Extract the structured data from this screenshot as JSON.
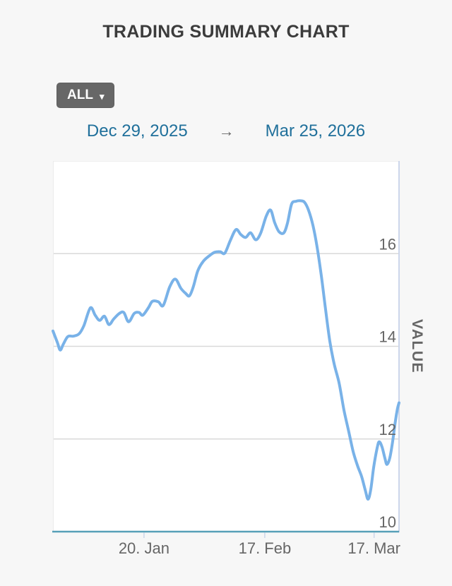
{
  "header": {
    "title": "TRADING SUMMARY CHART"
  },
  "controls": {
    "range_dropdown": {
      "label": "ALL",
      "caret": "▾"
    },
    "date_range": {
      "start": "Dec 29, 2025",
      "arrow": "→",
      "end": "Mar 25, 2026"
    }
  },
  "colors": {
    "page_bg": "#f7f7f7",
    "plot_bg": "#ffffff",
    "line": "#79b2e8",
    "x_axis_line": "#57a0b8",
    "gridline": "#d9d9d9",
    "plot_border_right": "#ccd6eb",
    "plot_border_left": "#ebebeb",
    "plot_border_top": "#efefef",
    "tick": "#ccd6eb",
    "axis_label": "#666666",
    "axis_title": "#666666"
  },
  "chart_data": {
    "type": "line",
    "title": "TRADING SUMMARY CHART",
    "xlabel": "",
    "ylabel": "VALUE",
    "x_range_labels": [
      "Dec 29, 2025",
      "Mar 25, 2026"
    ],
    "x_unit": "days from Dec 29, 2025",
    "x_span_days": 86,
    "ylim": [
      10,
      18
    ],
    "grid": true,
    "legend": "none",
    "y_ticks": [
      10,
      12,
      14,
      16
    ],
    "x_ticks": [
      {
        "label": "20. Jan",
        "day": 22,
        "f": 0.263
      },
      {
        "label": "17. Feb",
        "day": 50,
        "f": 0.612
      },
      {
        "label": "17. Mar",
        "day": 78,
        "f": 0.928
      }
    ],
    "points": [
      [
        0,
        14.33
      ],
      [
        1.1,
        14.08
      ],
      [
        1.8,
        13.92
      ],
      [
        2.6,
        14.05
      ],
      [
        3.7,
        14.21
      ],
      [
        5.1,
        14.22
      ],
      [
        6.5,
        14.27
      ],
      [
        7.7,
        14.45
      ],
      [
        9.3,
        14.83
      ],
      [
        10.5,
        14.67
      ],
      [
        11.6,
        14.56
      ],
      [
        12.8,
        14.65
      ],
      [
        13.9,
        14.47
      ],
      [
        15.1,
        14.59
      ],
      [
        16.5,
        14.71
      ],
      [
        17.6,
        14.73
      ],
      [
        18.8,
        14.53
      ],
      [
        20.2,
        14.71
      ],
      [
        21.4,
        14.73
      ],
      [
        22.3,
        14.67
      ],
      [
        23.7,
        14.83
      ],
      [
        24.7,
        14.97
      ],
      [
        26.2,
        14.96
      ],
      [
        27.4,
        14.88
      ],
      [
        29,
        15.28
      ],
      [
        30.4,
        15.45
      ],
      [
        31.8,
        15.25
      ],
      [
        33,
        15.14
      ],
      [
        33.9,
        15.09
      ],
      [
        34.9,
        15.29
      ],
      [
        36,
        15.63
      ],
      [
        37.4,
        15.84
      ],
      [
        38.8,
        15.95
      ],
      [
        40.2,
        16.03
      ],
      [
        41.6,
        16.04
      ],
      [
        42.7,
        16.01
      ],
      [
        44.1,
        16.29
      ],
      [
        45.5,
        16.52
      ],
      [
        46.7,
        16.41
      ],
      [
        47.9,
        16.35
      ],
      [
        49.1,
        16.45
      ],
      [
        50.4,
        16.3
      ],
      [
        51.6,
        16.44
      ],
      [
        53,
        16.81
      ],
      [
        54.1,
        16.94
      ],
      [
        55.1,
        16.67
      ],
      [
        56.2,
        16.47
      ],
      [
        57.4,
        16.45
      ],
      [
        58.3,
        16.67
      ],
      [
        59.3,
        17.07
      ],
      [
        60.4,
        17.13
      ],
      [
        61.6,
        17.14
      ],
      [
        62.5,
        17.11
      ],
      [
        63.5,
        16.94
      ],
      [
        64.6,
        16.61
      ],
      [
        65.6,
        16.16
      ],
      [
        66.7,
        15.52
      ],
      [
        67.7,
        14.83
      ],
      [
        68.8,
        14.11
      ],
      [
        69.9,
        13.61
      ],
      [
        71.1,
        13.21
      ],
      [
        72.3,
        12.63
      ],
      [
        73.5,
        12.16
      ],
      [
        74.6,
        11.73
      ],
      [
        75.7,
        11.42
      ],
      [
        76.7,
        11.19
      ],
      [
        77.6,
        10.9
      ],
      [
        78.3,
        10.7
      ],
      [
        79,
        10.92
      ],
      [
        79.7,
        11.39
      ],
      [
        80.6,
        11.82
      ],
      [
        81.1,
        11.94
      ],
      [
        81.8,
        11.82
      ],
      [
        82.5,
        11.58
      ],
      [
        83,
        11.45
      ],
      [
        83.7,
        11.59
      ],
      [
        84.4,
        11.94
      ],
      [
        85.1,
        12.39
      ],
      [
        85.6,
        12.65
      ],
      [
        86,
        12.78
      ]
    ]
  }
}
